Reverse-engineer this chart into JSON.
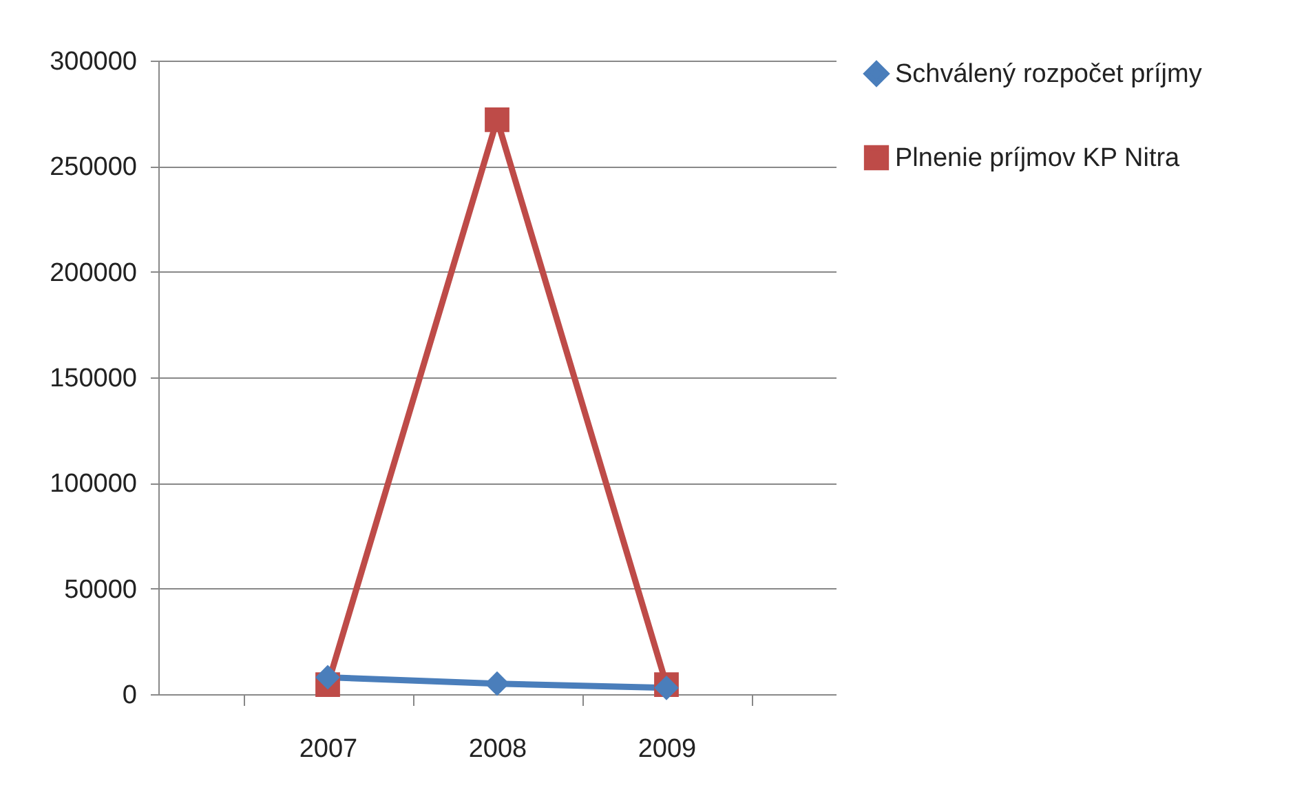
{
  "chart_data": {
    "type": "line",
    "categories": [
      "2007",
      "2008",
      "2009"
    ],
    "series": [
      {
        "name": "Schválený rozpočet príjmy",
        "color": "#4a7ebb",
        "marker": "diamond",
        "values": [
          8000,
          5000,
          3000
        ]
      },
      {
        "name": "Plnenie príjmov KP Nitra",
        "color": "#be4b48",
        "marker": "square",
        "values": [
          4500,
          272000,
          4500
        ]
      }
    ],
    "ylim": [
      0,
      300000
    ],
    "yticks": [
      0,
      50000,
      100000,
      150000,
      200000,
      250000,
      300000
    ],
    "grid": "y",
    "legend": "right"
  }
}
